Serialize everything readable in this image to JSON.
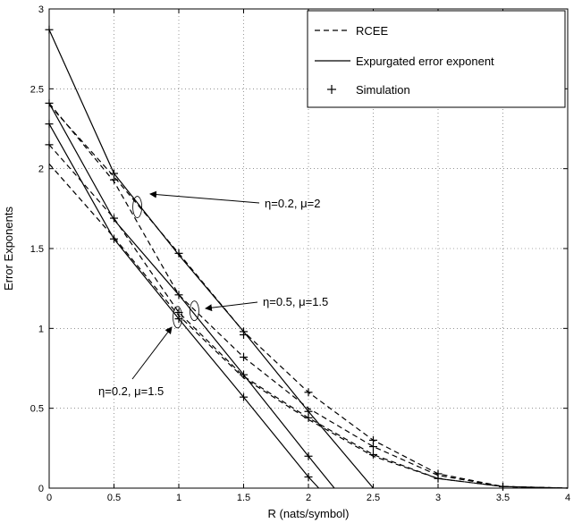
{
  "chart_data": {
    "type": "line",
    "xlabel": "R (nats/symbol)",
    "ylabel": "Error Exponents",
    "xlim": [
      0,
      4
    ],
    "ylim": [
      0,
      3
    ],
    "xticks": [
      "0",
      "0.5",
      "1",
      "1.5",
      "2",
      "2.5",
      "3",
      "3.5",
      "4"
    ],
    "yticks": [
      "0",
      "0.5",
      "1",
      "1.5",
      "2",
      "2.5",
      "3"
    ],
    "grid": true,
    "legend_position": "top-right",
    "legend": [
      {
        "label": "RCEE",
        "style": "dashed"
      },
      {
        "label": "Expurgated error exponent",
        "style": "solid"
      },
      {
        "label": "Simulation",
        "style": "plus-marker"
      }
    ],
    "series": [
      {
        "group": "η=0.2, μ=2",
        "kind": "RCEE",
        "style": "dashed",
        "x": [
          0,
          0.5,
          1,
          1.5,
          2,
          2.5,
          3,
          3.5,
          4
        ],
        "y": [
          2.4,
          1.95,
          1.47,
          0.98,
          0.6,
          0.3,
          0.09,
          0.01,
          0
        ]
      },
      {
        "group": "η=0.2, μ=2",
        "kind": "Expurgated error exponent",
        "style": "solid",
        "x": [
          0,
          0.5,
          1,
          1.5,
          2,
          2.5
        ],
        "y": [
          2.87,
          1.97,
          1.46,
          0.98,
          0.48,
          0
        ]
      },
      {
        "group": "η=0.5, μ=1.5",
        "kind": "RCEE",
        "style": "dashed",
        "x": [
          0,
          0.5,
          1,
          1.5,
          2,
          2.5,
          3,
          3.5,
          4
        ],
        "y": [
          2.41,
          1.92,
          1.21,
          0.82,
          0.5,
          0.26,
          0.08,
          0.01,
          0
        ]
      },
      {
        "group": "η=0.5, μ=1.5",
        "kind": "Expurgated error exponent",
        "style": "solid",
        "x": [
          0,
          0.5,
          1,
          1.5,
          2,
          2.2
        ],
        "y": [
          2.41,
          1.68,
          1.21,
          0.71,
          0.2,
          0
        ]
      },
      {
        "group": "η=0.2, μ=1.5",
        "kind": "RCEE",
        "style": "dashed",
        "x": [
          0,
          0.5,
          1,
          1.5,
          2,
          2.5,
          3,
          3.5,
          4
        ],
        "y": [
          2.15,
          1.69,
          1.1,
          0.7,
          0.44,
          0.21,
          0.06,
          0.01,
          0
        ]
      },
      {
        "group": "η=0.2, μ=1.5",
        "kind": "Expurgated error exponent",
        "style": "solid",
        "x": [
          0,
          0.5,
          1,
          1.5,
          2,
          2.08
        ],
        "y": [
          2.28,
          1.56,
          1.06,
          0.57,
          0.07,
          0
        ]
      },
      {
        "group": "extra",
        "kind": "RCEE",
        "style": "dashed",
        "x": [
          0,
          0.5,
          1,
          1.5,
          2,
          2.5,
          3,
          3.5,
          4
        ],
        "y": [
          2.03,
          1.57,
          1.08,
          0.69,
          0.43,
          0.2,
          0.06,
          0.01,
          0
        ]
      }
    ],
    "simulation": {
      "x": [
        0,
        0,
        0,
        0,
        0.5,
        0.5,
        0.5,
        0.5,
        1,
        1,
        1,
        1,
        1.5,
        1.5,
        1.5,
        1.5,
        1.5,
        2,
        2,
        2,
        2,
        2,
        2.5,
        2.5,
        2.5,
        3,
        3,
        3.5,
        3.5
      ],
      "y": [
        2.87,
        2.41,
        2.28,
        2.15,
        1.97,
        1.93,
        1.69,
        1.56,
        1.47,
        1.21,
        1.1,
        1.06,
        0.98,
        0.96,
        0.82,
        0.71,
        0.57,
        0.6,
        0.48,
        0.44,
        0.2,
        0.07,
        0.3,
        0.26,
        0.21,
        0.09,
        0.06,
        0.01,
        0.01
      ]
    },
    "annotations": [
      {
        "text": "η=0.2, μ=2",
        "target": [
          0.68,
          1.76
        ]
      },
      {
        "text": "η=0.5, μ=1.5",
        "target": [
          1.12,
          1.11
        ]
      },
      {
        "text": "η=0.2, μ=1.5",
        "target": [
          0.99,
          1.07
        ]
      }
    ]
  }
}
